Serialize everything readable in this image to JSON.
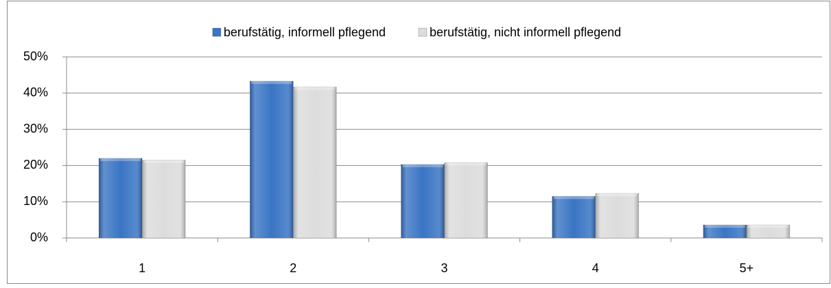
{
  "chart_data": {
    "type": "bar",
    "categories": [
      "1",
      "2",
      "3",
      "4",
      "5+"
    ],
    "series": [
      {
        "name": "berufstätig, informell pflegend",
        "color": "#3a75c4",
        "values": [
          22,
          43.3,
          20.3,
          11.5,
          3.6
        ]
      },
      {
        "name": "berufstätig, nicht informell pflegend",
        "color": "#dcdcdc",
        "values": [
          21.5,
          41.7,
          20.8,
          12.3,
          3.6
        ]
      }
    ],
    "ylim": [
      0,
      50
    ],
    "yticks": [
      {
        "value": 0,
        "label": "0%"
      },
      {
        "value": 10,
        "label": "10%"
      },
      {
        "value": 20,
        "label": "20%"
      },
      {
        "value": 30,
        "label": "30%"
      },
      {
        "value": 40,
        "label": "40%"
      },
      {
        "value": 50,
        "label": "50%"
      }
    ],
    "grid": true,
    "legend": "top"
  }
}
